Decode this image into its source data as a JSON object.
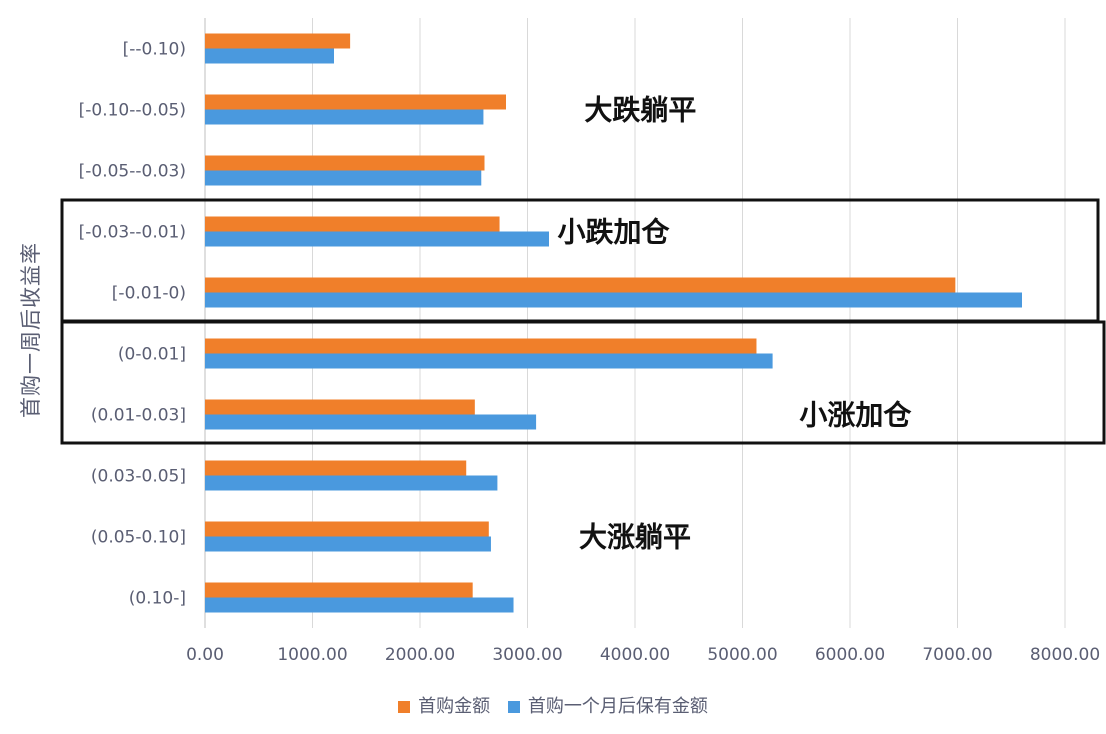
{
  "chart_data": {
    "type": "bar",
    "orientation": "horizontal",
    "ylabel": "首购一周后收益率",
    "xlim": [
      0,
      8000
    ],
    "xticks": [
      "0.00",
      "1000.00",
      "2000.00",
      "3000.00",
      "4000.00",
      "5000.00",
      "6000.00",
      "7000.00",
      "8000.00"
    ],
    "grid": "vertical",
    "legend_position": "bottom",
    "categories": [
      "[--0.10)",
      "[-0.10--0.05)",
      "[-0.05--0.03)",
      "[-0.03--0.01)",
      "[-0.01-0)",
      "(0-0.01]",
      "(0.01-0.03]",
      "(0.03-0.05]",
      "(0.05-0.10]",
      "(0.10-]"
    ],
    "series": [
      {
        "name": "首购金额",
        "color": "#f07f2a",
        "values": [
          1350,
          2800,
          2600,
          2740,
          6980,
          5130,
          2510,
          2430,
          2640,
          2490
        ]
      },
      {
        "name": "首购一个月后保有金额",
        "color": "#4a99de",
        "values": [
          1200,
          2590,
          2570,
          3200,
          7600,
          5280,
          3080,
          2720,
          2660,
          2870
        ]
      }
    ],
    "annotations": [
      {
        "text": "大跌躺平",
        "category": "[-0.10--0.05)",
        "x": 4050
      },
      {
        "text": "小跌加仓",
        "category": "[-0.03--0.01)",
        "x": 3800
      },
      {
        "text": "小涨加仓",
        "category": "(0.01-0.03]",
        "x": 6050
      },
      {
        "text": "大涨躺平",
        "category": "(0.05-0.10]",
        "x": 4000
      }
    ],
    "boxes": [
      {
        "from": "[-0.03--0.01)",
        "to": "[-0.01-0)"
      },
      {
        "from": "(0-0.01]",
        "to": "(0.01-0.03]"
      }
    ]
  }
}
